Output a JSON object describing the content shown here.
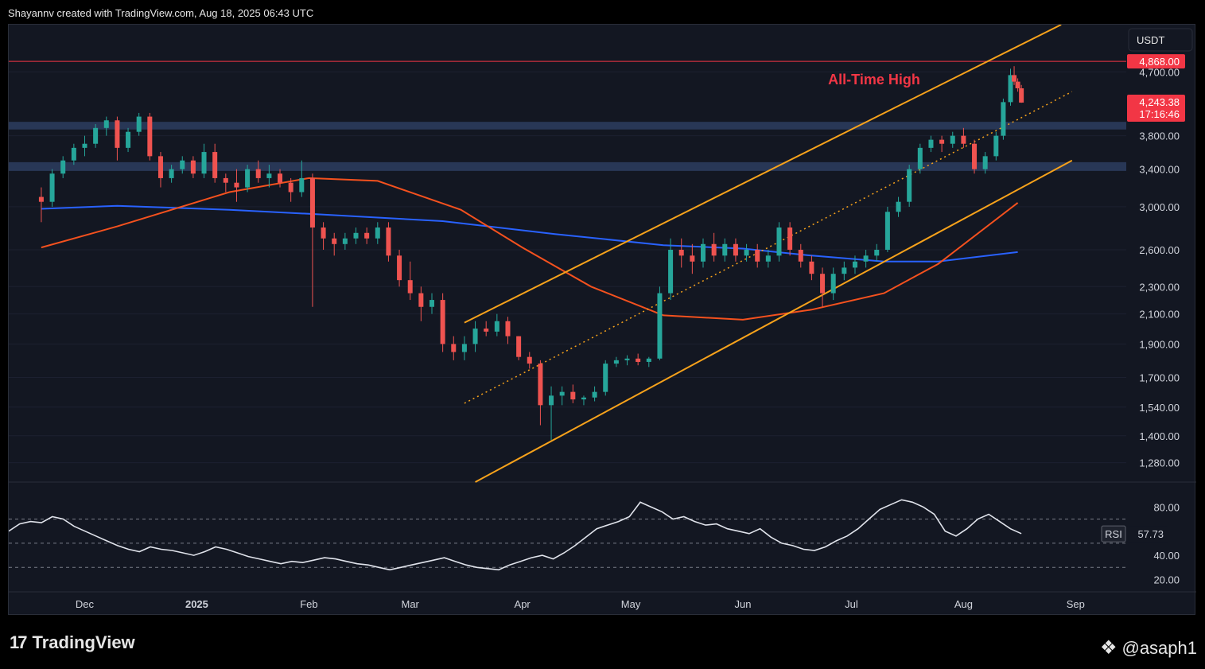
{
  "header": {
    "credit": "Shayannv created with TradingView.com, Aug 18, 2025 06:43 UTC"
  },
  "footer": {
    "brand": "TradingView",
    "handle": "@asaph1"
  },
  "colors": {
    "bg": "#131722",
    "up": "#26a69a",
    "down": "#ef5350",
    "ma_blue": "#2962ff",
    "ma_orange": "#f4511e",
    "channel": "#f7a21b",
    "ath": "#f23645",
    "zone": "#2b3b5c"
  },
  "chart_data": {
    "type": "candlestick",
    "symbol_currency": "USDT",
    "y_scale": "log",
    "ylim": [
      1200,
      5500
    ],
    "price_ticks": [
      "4,700.00",
      "3,800.00",
      "3,400.00",
      "3,000.00",
      "2,600.00",
      "2,300.00",
      "2,100.00",
      "1,900.00",
      "1,700.00",
      "1,540.00",
      "1,400.00",
      "1,280.00"
    ],
    "x_ticks": [
      "Dec",
      "2025",
      "Feb",
      "Mar",
      "Apr",
      "May",
      "Jun",
      "Jul",
      "Aug",
      "Sep"
    ],
    "all_time_high": {
      "label": "All-Time High",
      "value": 4868,
      "value_label": "4,868.00"
    },
    "last_price": {
      "value": 4243.38,
      "label": "4,243.38",
      "countdown": "17:16:46"
    },
    "support_zones": [
      {
        "low": 3880,
        "high": 3980
      },
      {
        "low": 3380,
        "high": 3480
      }
    ],
    "ascending_channel": {
      "upper": [
        [
          "2025-03-16",
          2040
        ],
        [
          "2025-08-28",
          5500
        ]
      ],
      "lower": [
        [
          "2025-03-19",
          1200
        ],
        [
          "2025-08-31",
          3500
        ]
      ],
      "middle_dotted": [
        [
          "2025-03-16",
          1560
        ],
        [
          "2025-08-31",
          4400
        ]
      ]
    },
    "moving_averages": [
      {
        "name": "MA 200",
        "color": "#2962ff",
        "points": [
          [
            "2024-11-19",
            2980
          ],
          [
            "2024-12-10",
            3010
          ],
          [
            "2025-01-10",
            2970
          ],
          [
            "2025-02-01",
            2930
          ],
          [
            "2025-03-10",
            2860
          ],
          [
            "2025-04-10",
            2740
          ],
          [
            "2025-05-10",
            2640
          ],
          [
            "2025-06-01",
            2610
          ],
          [
            "2025-06-20",
            2550
          ],
          [
            "2025-07-10",
            2500
          ],
          [
            "2025-07-25",
            2500
          ],
          [
            "2025-08-16",
            2580
          ]
        ]
      },
      {
        "name": "MA 100",
        "color": "#f4511e",
        "points": [
          [
            "2024-11-19",
            2620
          ],
          [
            "2024-12-10",
            2810
          ],
          [
            "2025-01-10",
            3150
          ],
          [
            "2025-02-01",
            3300
          ],
          [
            "2025-02-20",
            3270
          ],
          [
            "2025-03-15",
            2970
          ],
          [
            "2025-04-01",
            2620
          ],
          [
            "2025-04-20",
            2300
          ],
          [
            "2025-05-10",
            2090
          ],
          [
            "2025-06-01",
            2060
          ],
          [
            "2025-06-20",
            2130
          ],
          [
            "2025-07-10",
            2250
          ],
          [
            "2025-07-25",
            2480
          ],
          [
            "2025-08-16",
            3040
          ]
        ]
      }
    ],
    "candles": [
      [
        "2024-11-19",
        3100,
        3200,
        2850,
        3050
      ],
      [
        "2024-11-22",
        3050,
        3400,
        3000,
        3350
      ],
      [
        "2024-11-25",
        3350,
        3550,
        3300,
        3500
      ],
      [
        "2024-11-28",
        3500,
        3700,
        3450,
        3650
      ],
      [
        "2024-12-01",
        3650,
        3800,
        3550,
        3700
      ],
      [
        "2024-12-04",
        3700,
        3950,
        3650,
        3900
      ],
      [
        "2024-12-07",
        3900,
        4050,
        3800,
        4000
      ],
      [
        "2024-12-10",
        4000,
        4050,
        3500,
        3650
      ],
      [
        "2024-12-13",
        3650,
        3900,
        3600,
        3850
      ],
      [
        "2024-12-16",
        3850,
        4100,
        3800,
        4050
      ],
      [
        "2024-12-19",
        4050,
        4100,
        3500,
        3550
      ],
      [
        "2024-12-22",
        3550,
        3600,
        3200,
        3300
      ],
      [
        "2024-12-25",
        3300,
        3450,
        3250,
        3400
      ],
      [
        "2024-12-28",
        3400,
        3550,
        3350,
        3500
      ],
      [
        "2024-12-31",
        3500,
        3550,
        3300,
        3350
      ],
      [
        "2025-01-03",
        3350,
        3700,
        3300,
        3600
      ],
      [
        "2025-01-06",
        3600,
        3700,
        3250,
        3300
      ],
      [
        "2025-01-09",
        3300,
        3350,
        3150,
        3250
      ],
      [
        "2025-01-12",
        3250,
        3400,
        3050,
        3200
      ],
      [
        "2025-01-15",
        3200,
        3450,
        3150,
        3400
      ],
      [
        "2025-01-18",
        3400,
        3500,
        3250,
        3300
      ],
      [
        "2025-01-21",
        3300,
        3450,
        3200,
        3350
      ],
      [
        "2025-01-24",
        3350,
        3400,
        3200,
        3250
      ],
      [
        "2025-01-27",
        3250,
        3300,
        3050,
        3150
      ],
      [
        "2025-01-30",
        3150,
        3500,
        3100,
        3300
      ],
      [
        "2025-02-02",
        3300,
        3350,
        2150,
        2800
      ],
      [
        "2025-02-05",
        2800,
        2850,
        2600,
        2700
      ],
      [
        "2025-02-08",
        2700,
        2750,
        2550,
        2650
      ],
      [
        "2025-02-11",
        2650,
        2750,
        2600,
        2700
      ],
      [
        "2025-02-14",
        2700,
        2800,
        2650,
        2750
      ],
      [
        "2025-02-17",
        2750,
        2800,
        2650,
        2700
      ],
      [
        "2025-02-20",
        2700,
        2850,
        2650,
        2800
      ],
      [
        "2025-02-23",
        2800,
        2850,
        2500,
        2550
      ],
      [
        "2025-02-26",
        2550,
        2600,
        2300,
        2350
      ],
      [
        "2025-03-01",
        2350,
        2500,
        2200,
        2250
      ],
      [
        "2025-03-04",
        2250,
        2300,
        2050,
        2150
      ],
      [
        "2025-03-07",
        2150,
        2250,
        2100,
        2200
      ],
      [
        "2025-03-10",
        2200,
        2250,
        1850,
        1900
      ],
      [
        "2025-03-13",
        1900,
        1950,
        1800,
        1850
      ],
      [
        "2025-03-16",
        1850,
        1950,
        1800,
        1900
      ],
      [
        "2025-03-19",
        1900,
        2050,
        1850,
        2000
      ],
      [
        "2025-03-22",
        2000,
        2050,
        1950,
        1980
      ],
      [
        "2025-03-25",
        1980,
        2100,
        1950,
        2050
      ],
      [
        "2025-03-28",
        2050,
        2080,
        1900,
        1950
      ],
      [
        "2025-03-31",
        1950,
        1950,
        1800,
        1820
      ],
      [
        "2025-04-03",
        1820,
        1850,
        1750,
        1780
      ],
      [
        "2025-04-06",
        1780,
        1800,
        1450,
        1550
      ],
      [
        "2025-04-09",
        1550,
        1650,
        1380,
        1600
      ],
      [
        "2025-04-12",
        1600,
        1650,
        1550,
        1620
      ],
      [
        "2025-04-15",
        1620,
        1660,
        1560,
        1580
      ],
      [
        "2025-04-18",
        1580,
        1600,
        1550,
        1590
      ],
      [
        "2025-04-21",
        1590,
        1650,
        1570,
        1620
      ],
      [
        "2025-04-24",
        1620,
        1800,
        1600,
        1780
      ],
      [
        "2025-04-27",
        1780,
        1820,
        1760,
        1800
      ],
      [
        "2025-04-30",
        1800,
        1830,
        1770,
        1810
      ],
      [
        "2025-05-03",
        1810,
        1840,
        1770,
        1790
      ],
      [
        "2025-05-06",
        1790,
        1820,
        1760,
        1810
      ],
      [
        "2025-05-09",
        1810,
        2300,
        1800,
        2250
      ],
      [
        "2025-05-12",
        2250,
        2700,
        2200,
        2600
      ],
      [
        "2025-05-15",
        2600,
        2700,
        2450,
        2550
      ],
      [
        "2025-05-18",
        2550,
        2650,
        2400,
        2500
      ],
      [
        "2025-05-21",
        2500,
        2700,
        2450,
        2650
      ],
      [
        "2025-05-24",
        2650,
        2750,
        2500,
        2550
      ],
      [
        "2025-05-27",
        2550,
        2700,
        2500,
        2650
      ],
      [
        "2025-05-30",
        2650,
        2700,
        2500,
        2550
      ],
      [
        "2025-06-02",
        2550,
        2650,
        2500,
        2600
      ],
      [
        "2025-06-05",
        2600,
        2650,
        2450,
        2500
      ],
      [
        "2025-06-08",
        2500,
        2600,
        2450,
        2550
      ],
      [
        "2025-06-11",
        2550,
        2850,
        2500,
        2800
      ],
      [
        "2025-06-14",
        2800,
        2850,
        2550,
        2600
      ],
      [
        "2025-06-17",
        2600,
        2650,
        2450,
        2500
      ],
      [
        "2025-06-20",
        2500,
        2550,
        2350,
        2400
      ],
      [
        "2025-06-23",
        2400,
        2450,
        2150,
        2250
      ],
      [
        "2025-06-26",
        2250,
        2450,
        2200,
        2400
      ],
      [
        "2025-06-29",
        2400,
        2500,
        2350,
        2450
      ],
      [
        "2025-07-02",
        2450,
        2550,
        2400,
        2500
      ],
      [
        "2025-07-05",
        2500,
        2600,
        2450,
        2550
      ],
      [
        "2025-07-08",
        2550,
        2650,
        2500,
        2600
      ],
      [
        "2025-07-11",
        2600,
        3000,
        2580,
        2950
      ],
      [
        "2025-07-14",
        2950,
        3100,
        2900,
        3050
      ],
      [
        "2025-07-17",
        3050,
        3450,
        3000,
        3400
      ],
      [
        "2025-07-20",
        3400,
        3700,
        3350,
        3650
      ],
      [
        "2025-07-23",
        3650,
        3800,
        3600,
        3750
      ],
      [
        "2025-07-26",
        3750,
        3800,
        3600,
        3700
      ],
      [
        "2025-07-29",
        3700,
        3850,
        3650,
        3800
      ],
      [
        "2025-08-01",
        3800,
        3900,
        3650,
        3700
      ],
      [
        "2025-08-04",
        3700,
        3750,
        3350,
        3400
      ],
      [
        "2025-08-07",
        3400,
        3600,
        3350,
        3550
      ],
      [
        "2025-08-10",
        3550,
        3850,
        3500,
        3800
      ],
      [
        "2025-08-12",
        3800,
        4300,
        3750,
        4250
      ],
      [
        "2025-08-14",
        4250,
        4750,
        4200,
        4650
      ],
      [
        "2025-08-15",
        4650,
        4790,
        4500,
        4550
      ],
      [
        "2025-08-16",
        4550,
        4600,
        4400,
        4450
      ],
      [
        "2025-08-17",
        4450,
        4500,
        4240,
        4243.38
      ]
    ],
    "rsi": {
      "label": "RSI",
      "value": 57.73,
      "value_label": "57.73",
      "ticks": [
        "80.00",
        "40.00",
        "20.00"
      ],
      "levels": [
        70,
        50,
        30
      ],
      "values": [
        60,
        66,
        68,
        67,
        72,
        70,
        64,
        60,
        56,
        52,
        48,
        45,
        43,
        47,
        45,
        44,
        42,
        40,
        43,
        47,
        45,
        42,
        39,
        37,
        35,
        33,
        35,
        34,
        36,
        38,
        37,
        35,
        33,
        32,
        30,
        28,
        30,
        32,
        34,
        36,
        38,
        35,
        32,
        30,
        29,
        28,
        32,
        35,
        38,
        40,
        37,
        42,
        48,
        55,
        62,
        65,
        68,
        72,
        84,
        80,
        76,
        70,
        72,
        68,
        65,
        66,
        62,
        60,
        58,
        62,
        55,
        50,
        48,
        45,
        44,
        47,
        52,
        56,
        62,
        70,
        78,
        82,
        86,
        84,
        80,
        74,
        60,
        56,
        62,
        70,
        74,
        68,
        62,
        58
      ]
    }
  }
}
